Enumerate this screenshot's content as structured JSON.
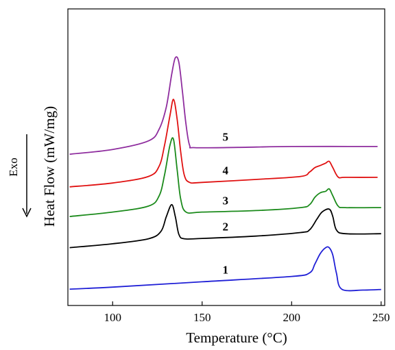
{
  "chart_data": {
    "type": "line",
    "title": "",
    "xlabel": "Temperature (°C)",
    "ylabel": "Heat Flow (mW/mg)",
    "side_label": "Exo",
    "xlim": [
      75,
      252
    ],
    "ylim": [
      0,
      100
    ],
    "xticks": [
      100,
      150,
      200,
      250
    ],
    "yticks_shown": false,
    "grid": false,
    "legend": "none",
    "series": [
      {
        "name": "1",
        "color": "#1f1fd6",
        "points": [
          [
            76,
            5.5
          ],
          [
            100,
            6.2
          ],
          [
            150,
            8.0
          ],
          [
            200,
            9.8
          ],
          [
            210,
            11
          ],
          [
            213,
            14
          ],
          [
            216,
            17.5
          ],
          [
            219,
            19.5
          ],
          [
            221,
            19.5
          ],
          [
            223,
            17
          ],
          [
            225,
            11
          ],
          [
            228,
            5.5
          ],
          [
            240,
            5.2
          ],
          [
            250,
            5.4
          ]
        ]
      },
      {
        "name": "2",
        "color": "#000000",
        "points": [
          [
            76,
            19.5
          ],
          [
            100,
            20.8
          ],
          [
            120,
            22.5
          ],
          [
            127,
            25
          ],
          [
            130,
            30
          ],
          [
            133,
            34
          ],
          [
            135,
            30
          ],
          [
            137,
            24
          ],
          [
            140,
            22.5
          ],
          [
            150,
            22.6
          ],
          [
            180,
            23.4
          ],
          [
            205,
            24.6
          ],
          [
            210,
            25.5
          ],
          [
            214,
            29
          ],
          [
            217,
            31.5
          ],
          [
            221,
            32.5
          ],
          [
            223,
            30
          ],
          [
            225,
            25.5
          ],
          [
            230,
            24.2
          ],
          [
            250,
            24.2
          ]
        ]
      },
      {
        "name": "3",
        "color": "#1a8a1a",
        "points": [
          [
            76,
            30
          ],
          [
            100,
            31.5
          ],
          [
            120,
            33.5
          ],
          [
            126,
            37
          ],
          [
            129,
            44
          ],
          [
            132,
            54
          ],
          [
            134,
            56
          ],
          [
            136,
            46
          ],
          [
            138,
            36
          ],
          [
            141,
            31.5
          ],
          [
            150,
            31.5
          ],
          [
            180,
            32
          ],
          [
            205,
            33
          ],
          [
            210,
            34
          ],
          [
            213,
            36.5
          ],
          [
            216,
            38
          ],
          [
            219,
            38.5
          ],
          [
            221,
            39.3
          ],
          [
            223,
            37
          ],
          [
            226,
            33.5
          ],
          [
            230,
            33
          ],
          [
            250,
            33
          ]
        ]
      },
      {
        "name": "4",
        "color": "#e01010",
        "points": [
          [
            76,
            40
          ],
          [
            100,
            41.3
          ],
          [
            120,
            43.5
          ],
          [
            126,
            47
          ],
          [
            129,
            54
          ],
          [
            132,
            64
          ],
          [
            134,
            69.5
          ],
          [
            136,
            63
          ],
          [
            138,
            52
          ],
          [
            140,
            44
          ],
          [
            143,
            41.5
          ],
          [
            150,
            41.5
          ],
          [
            180,
            42.5
          ],
          [
            205,
            43.5
          ],
          [
            210,
            45
          ],
          [
            213,
            46.5
          ],
          [
            216,
            47.2
          ],
          [
            219,
            48
          ],
          [
            221,
            48.6
          ],
          [
            223,
            46.5
          ],
          [
            226,
            43.3
          ],
          [
            230,
            43.2
          ],
          [
            248,
            43.2
          ]
        ]
      },
      {
        "name": "5",
        "color": "#8e2c9e",
        "points": [
          [
            76,
            51
          ],
          [
            100,
            52.6
          ],
          [
            120,
            55.5
          ],
          [
            126,
            59.5
          ],
          [
            130,
            67
          ],
          [
            133,
            78
          ],
          [
            135,
            83.5
          ],
          [
            137,
            82
          ],
          [
            139,
            72
          ],
          [
            141,
            61
          ],
          [
            143,
            54
          ],
          [
            146,
            53.2
          ],
          [
            170,
            53.3
          ],
          [
            200,
            53.6
          ],
          [
            248,
            53.6
          ]
        ]
      }
    ]
  }
}
